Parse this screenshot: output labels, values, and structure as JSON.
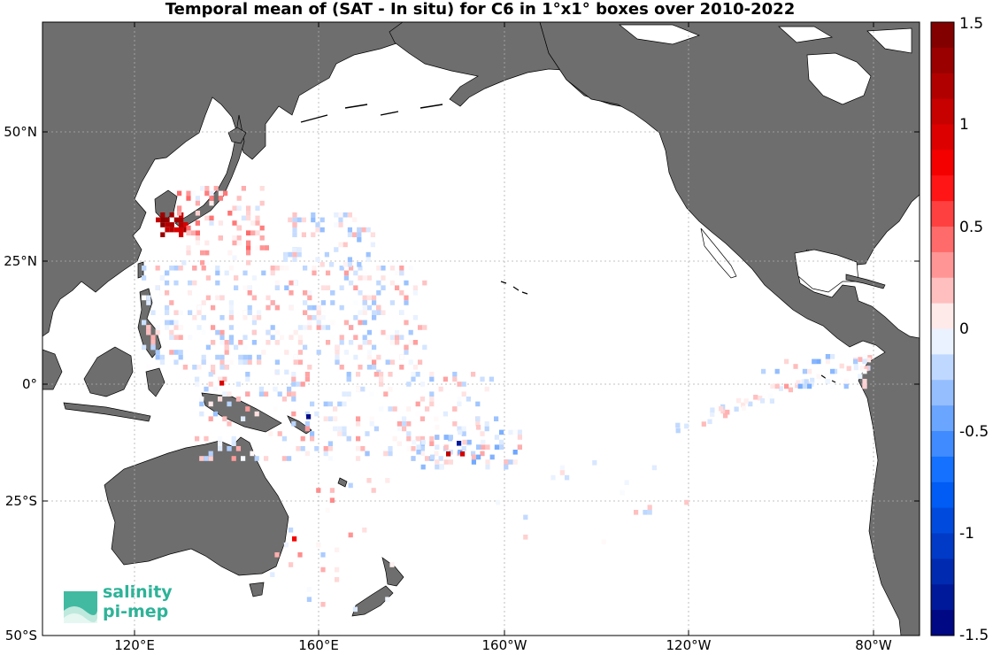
{
  "title": "Temporal mean of (SAT - In situ) for C6 in 1°x1° boxes over 2010-2022",
  "lat_ticks": [
    "50°N",
    "25°N",
    "0°",
    "25°S",
    "50°S"
  ],
  "lon_ticks": [
    "120°E",
    "160°E",
    "160°W",
    "120°W",
    "80°W"
  ],
  "colorbar_ticks": [
    "1.5",
    "1",
    "0.5",
    "0",
    "-0.5",
    "-1",
    "-1.5"
  ],
  "colors": {
    "land": "#6e6e6e",
    "ocean": "#ffffff",
    "grid": "#b0b0b0",
    "logo": "#2eb398"
  },
  "logo": {
    "line1": "salinity",
    "line2": "pi-mep"
  },
  "chart_data": {
    "type": "heatmap",
    "title": "Temporal mean of (SAT - In situ) for C6 in 1°x1° boxes over 2010-2022",
    "xlabel": "",
    "ylabel": "",
    "lon_range": [
      100,
      290
    ],
    "lat_range": [
      -50,
      73
    ],
    "color_range": [
      -1.5,
      1.5
    ],
    "colormap": "blue-white-red, 24 discrete steps",
    "cell_size_deg": 1
  }
}
